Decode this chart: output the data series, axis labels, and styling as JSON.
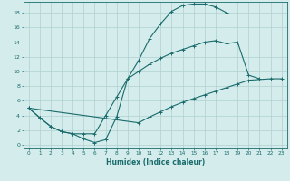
{
  "xlabel": "Humidex (Indice chaleur)",
  "bg_color": "#d4ecec",
  "grid_color": "#b0d0d0",
  "line_color": "#1a6b6b",
  "xlim": [
    -0.5,
    23.5
  ],
  "ylim": [
    -0.5,
    19.5
  ],
  "xticks": [
    0,
    1,
    2,
    3,
    4,
    5,
    6,
    7,
    8,
    9,
    10,
    11,
    12,
    13,
    14,
    15,
    16,
    17,
    18,
    19,
    20,
    21,
    22,
    23
  ],
  "yticks": [
    0,
    2,
    4,
    6,
    8,
    10,
    12,
    14,
    16,
    18
  ],
  "line1_x": [
    0,
    1,
    2,
    3,
    4,
    5,
    6,
    7,
    8,
    9,
    10,
    11,
    12,
    13,
    14,
    15,
    16,
    17,
    18,
    19,
    20,
    21,
    22,
    23
  ],
  "line1_y": [
    5,
    3.7,
    2.5,
    1.8,
    1.5,
    0.8,
    0.3,
    0.7,
    3.8,
    9.0,
    11.5,
    14.5,
    16.5,
    18.2,
    19.0,
    19.2,
    19.2,
    18.8,
    18.0,
    null,
    null,
    null,
    null,
    null
  ],
  "line2_x": [
    0,
    1,
    2,
    3,
    4,
    5,
    6,
    7,
    8,
    9,
    10,
    11,
    12,
    13,
    14,
    15,
    16,
    17,
    18,
    19,
    20,
    21,
    22,
    23
  ],
  "line2_y": [
    5,
    3.7,
    2.5,
    1.8,
    1.5,
    1.5,
    1.5,
    4.0,
    6.5,
    9.0,
    10.0,
    11.0,
    11.8,
    12.5,
    13.0,
    13.5,
    14.0,
    14.2,
    13.8,
    14.0,
    9.5,
    9.0,
    null,
    null
  ],
  "line3_x": [
    0,
    10,
    11,
    12,
    13,
    14,
    15,
    16,
    17,
    18,
    19,
    20,
    22,
    23
  ],
  "line3_y": [
    5,
    3.0,
    3.8,
    4.5,
    5.2,
    5.8,
    6.3,
    6.8,
    7.3,
    7.8,
    8.3,
    8.8,
    9.0,
    9.0
  ]
}
